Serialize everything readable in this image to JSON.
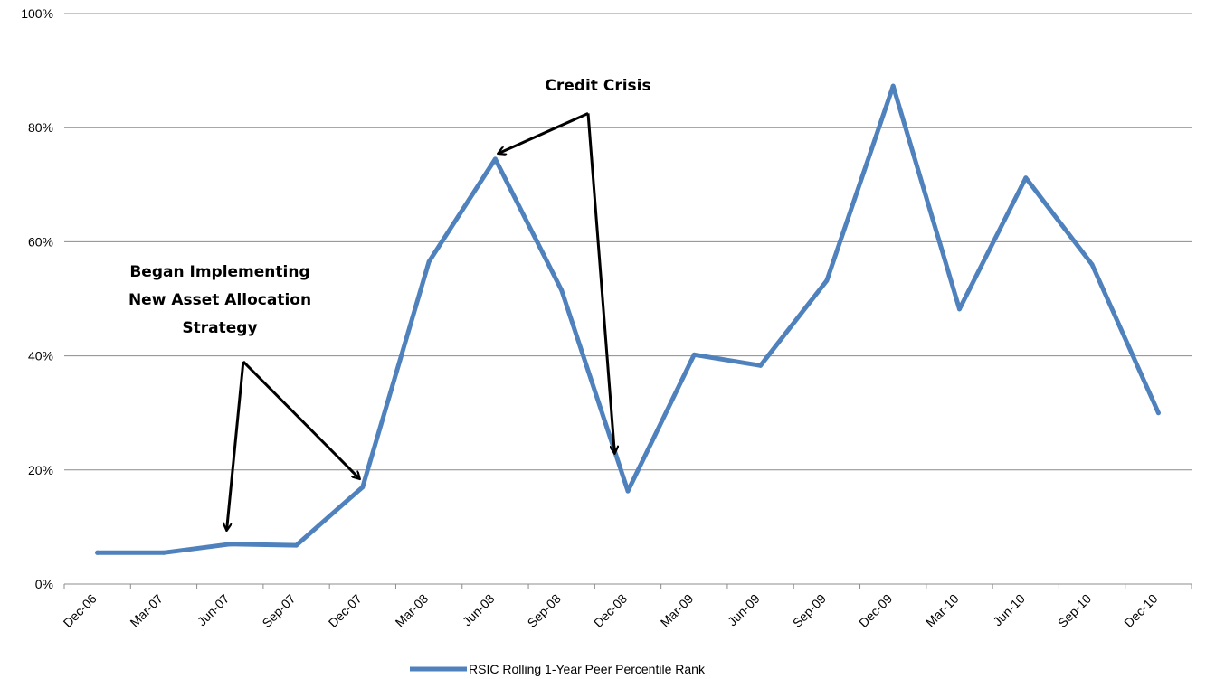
{
  "chart_data": {
    "type": "line",
    "title": "",
    "xlabel": "",
    "ylabel": "",
    "ylim": [
      0,
      100
    ],
    "ytick_labels": [
      "0%",
      "20%",
      "40%",
      "60%",
      "80%",
      "100%"
    ],
    "ytick_values": [
      0,
      20,
      40,
      60,
      80,
      100
    ],
    "grid": "horizontal",
    "legend_position": "bottom",
    "categories": [
      "Dec-06",
      "Mar-07",
      "Jun-07",
      "Sep-07",
      "Dec-07",
      "Mar-08",
      "Jun-08",
      "Sep-08",
      "Dec-08",
      "Mar-09",
      "Jun-09",
      "Sep-09",
      "Dec-09",
      "Mar-10",
      "Jun-10",
      "Sep-10",
      "Dec-10"
    ],
    "series": [
      {
        "name": "RSIC Rolling 1-Year Peer Percentile Rank",
        "color": "#4F81BD",
        "values": [
          5.5,
          5.5,
          7.0,
          6.8,
          17.0,
          56.5,
          74.5,
          51.5,
          16.3,
          40.2,
          38.3,
          53.2,
          87.3,
          48.2,
          71.2,
          56.0,
          30.0
        ]
      }
    ],
    "annotations": [
      {
        "lines": [
          "Began Implementing",
          "New Asset Allocation",
          "Strategy"
        ],
        "arrow_origin": {
          "x": 2.2,
          "y": 39
        },
        "arrows_to": [
          {
            "x": 1.95,
            "y": 9.5
          },
          {
            "x": 3.95,
            "y": 18.5
          }
        ]
      },
      {
        "lines": [
          "Credit Crisis"
        ],
        "arrow_origin": {
          "x": 7.4,
          "y": 82.5
        },
        "arrows_to": [
          {
            "x": 6.05,
            "y": 75.5
          },
          {
            "x": 7.8,
            "y": 23
          }
        ]
      }
    ]
  }
}
